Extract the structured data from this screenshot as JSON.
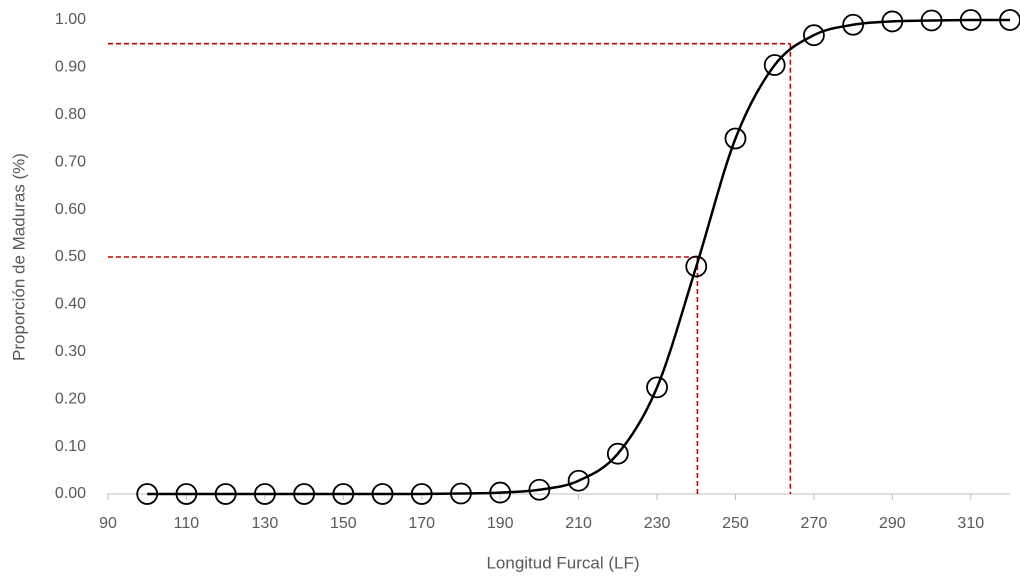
{
  "chart_data": {
    "type": "line",
    "x_label": "Longitud Furcal (LF)",
    "y_label": "Proporción de Maduras (%)",
    "x": [
      100,
      110,
      120,
      130,
      140,
      150,
      160,
      170,
      180,
      190,
      200,
      210,
      220,
      230,
      240,
      250,
      260,
      270,
      280,
      290,
      300,
      310,
      320
    ],
    "series": [
      {
        "color": "#000000",
        "marker": "open-circle",
        "line": "smooth",
        "values": [
          0,
          0,
          0,
          0,
          0,
          0,
          0,
          0,
          0.001,
          0.003,
          0.009,
          0.028,
          0.085,
          0.225,
          0.48,
          0.75,
          0.905,
          0.968,
          0.99,
          0.997,
          0.999,
          1.0,
          1.0
        ]
      }
    ],
    "reference_lines": [
      {
        "x": 240.3,
        "y": 0.5
      },
      {
        "x": 264,
        "y": 0.95
      }
    ],
    "reference_color": "#c00000",
    "xlim": [
      90,
      320
    ],
    "ylim": [
      0,
      1
    ],
    "xticks": [
      90,
      110,
      130,
      150,
      170,
      190,
      210,
      230,
      250,
      270,
      290,
      310
    ],
    "yticks": [
      {
        "value": 0,
        "label": "0.00"
      },
      {
        "value": 0.1,
        "label": "0.10"
      },
      {
        "value": 0.2,
        "label": "0.20"
      },
      {
        "value": 0.3,
        "label": "0.30"
      },
      {
        "value": 0.4,
        "label": "0.40"
      },
      {
        "value": 0.5,
        "label": "0.50"
      },
      {
        "value": 0.6,
        "label": "0.60"
      },
      {
        "value": 0.7,
        "label": "0.70"
      },
      {
        "value": 0.8,
        "label": "0.80"
      },
      {
        "value": 0.9,
        "label": "0.90"
      },
      {
        "value": 1,
        "label": "1.00"
      }
    ],
    "grid": false
  }
}
